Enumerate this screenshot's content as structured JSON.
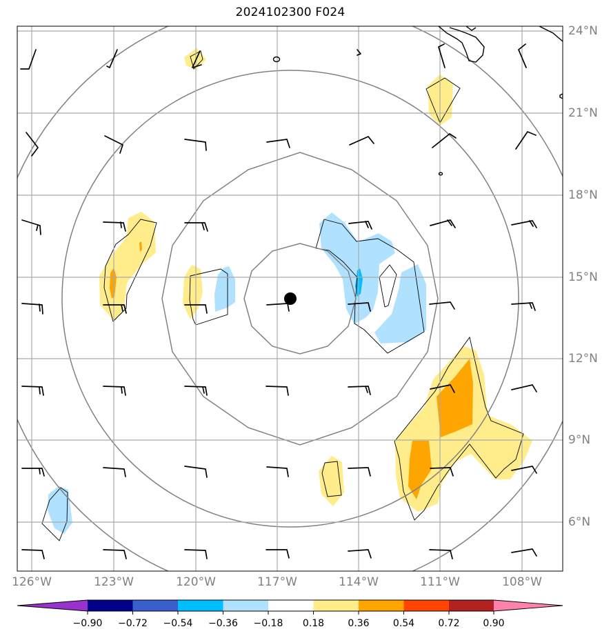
{
  "title": "2024102300 F024",
  "lat_labels": [
    "24°N",
    "21°N",
    "18°N",
    "15°N",
    "12°N",
    "9°N",
    "6°N"
  ],
  "lon_labels": [
    "126°W",
    "123°W",
    "120°W",
    "117°W",
    "114°W",
    "111°W",
    "108°W"
  ],
  "colorbar": {
    "tick_labels": [
      "−0.90",
      "−0.72",
      "−0.54",
      "−0.36",
      "−0.18",
      "0.18",
      "0.36",
      "0.54",
      "0.72",
      "0.90"
    ],
    "colors": [
      "#9932cc",
      "#00008b",
      "#3a5fcd",
      "#00bfff",
      "#b0e2ff",
      "#ffffff",
      "#ffec8b",
      "#ffa500",
      "#ff4500",
      "#b22222",
      "#ff82ab"
    ]
  },
  "map": {
    "projection": "lat-lon",
    "lon_range": [
      "126.5°W",
      "106.5°W"
    ],
    "lat_range": [
      "4.2°N",
      "24.2°N"
    ],
    "storm_center": {
      "lon": "116.5°W",
      "lat": "14.2°N"
    },
    "range_rings": 4,
    "fill_colors": {
      "light_yellow": "#ffec8b",
      "orange": "#ffa500",
      "light_blue": "#b0e2ff",
      "deep_sky_blue": "#00bfff"
    }
  }
}
